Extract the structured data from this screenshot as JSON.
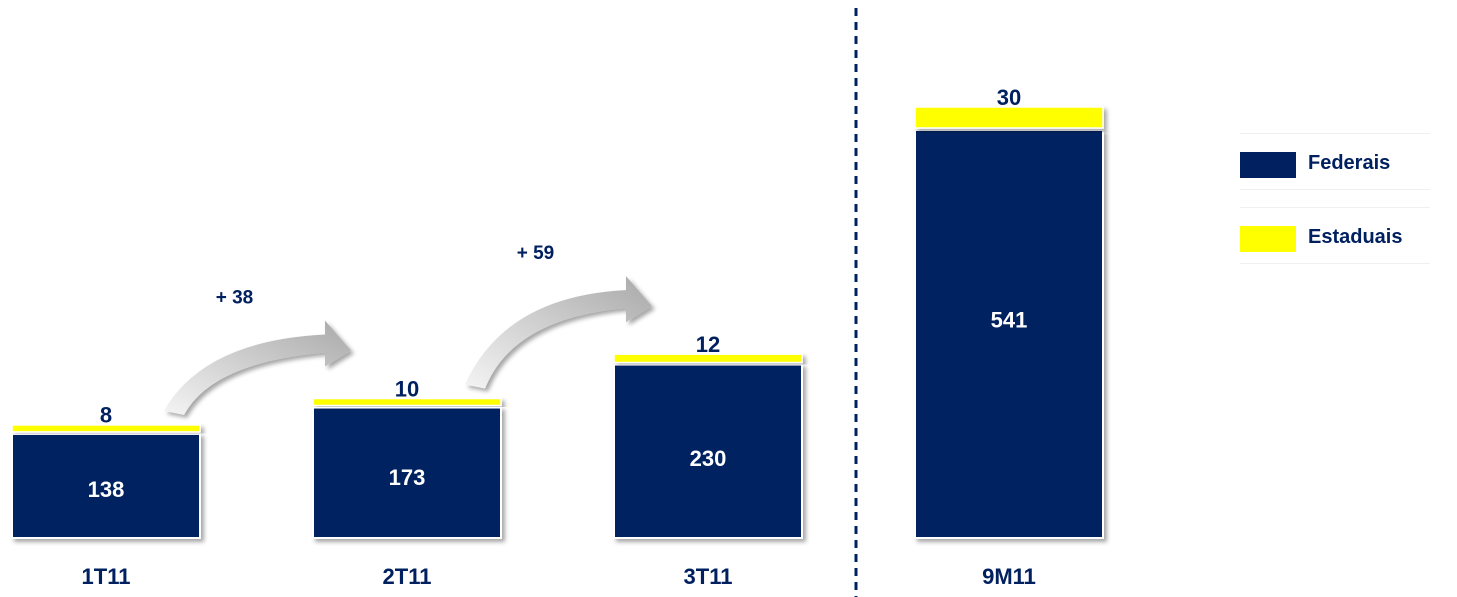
{
  "chart_data": {
    "type": "bar",
    "stacked": true,
    "categories": [
      "1T11",
      "2T11",
      "3T11",
      "9M11"
    ],
    "series": [
      {
        "name": "Federais",
        "values": [
          138,
          173,
          230,
          541
        ],
        "color": "#002060"
      },
      {
        "name": "Estaduais",
        "values": [
          8,
          10,
          12,
          30
        ],
        "color": "#ffff00"
      }
    ],
    "annotations": [
      {
        "from": "1T11",
        "to": "2T11",
        "label": "+ 38"
      },
      {
        "from": "2T11",
        "to": "3T11",
        "label": "+ 59"
      }
    ],
    "divider": "dashed vertical line between 3T11 and 9M11",
    "legend_position": "right",
    "label_color": "#002060",
    "grid": false
  }
}
